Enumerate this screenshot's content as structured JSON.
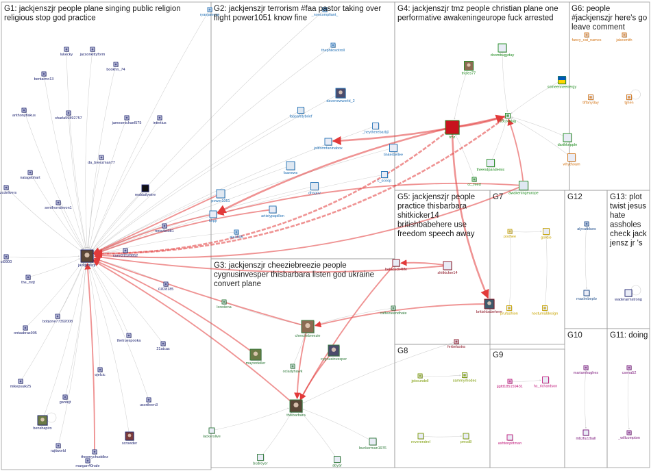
{
  "groups": [
    {
      "id": "G1",
      "label": "G1: jackjenszjr people plane singing public religion religious stop god practice",
      "color": "#1d2370"
    },
    {
      "id": "G2",
      "label": "G2: jackjenszjr terrorism #faa pastor taking over flight power1051 know fine",
      "color": "#1f6fb5"
    },
    {
      "id": "G3",
      "label": "G3: jackjenszjr cheeziebreezie people cygnusinvesper thisbarbara listen god ukraine convert plane",
      "color": "#2f7a3a"
    },
    {
      "id": "G4",
      "label": "G4: jackjenszjr tmz people christian plane one performative awakeningeurope fuck arrested",
      "color": "#1c8a1c"
    },
    {
      "id": "G5",
      "label": "G5: jackjenszjr people practice thisbarbara shitkicker14 britishbabehere use freedom speech away",
      "color": "#8a1020"
    },
    {
      "id": "G6",
      "label": "G6: people #jackjenszjr here's go leave comment",
      "color": "#d4781c"
    },
    {
      "id": "G7",
      "label": "G7",
      "color": "#c8a400"
    },
    {
      "id": "G8",
      "label": "G8",
      "color": "#7a9a00"
    },
    {
      "id": "G9",
      "label": "G9",
      "color": "#c0187a"
    },
    {
      "id": "G10",
      "label": "G10",
      "color": "#7a157a"
    },
    {
      "id": "G11",
      "label": "G11: doing",
      "color": "#7a157a"
    },
    {
      "id": "G12",
      "label": "G12",
      "color": "#1a4a8a"
    },
    {
      "id": "G13",
      "label": "G13: plot twist jesus hate assholes check jack jensz jr 's",
      "color": "#1d2370"
    }
  ],
  "nodes": [
    {
      "id": "jackjenszjr",
      "label": "jackjenszjr",
      "group": "G1",
      "icon": "avatar-photo"
    },
    {
      "id": "lukecky",
      "label": "lukecky",
      "group": "G1",
      "icon": "avatar"
    },
    {
      "id": "jacsonkittyform",
      "label": "jacsonkittyform",
      "group": "G1",
      "icon": "avatar"
    },
    {
      "id": "bentaimo13",
      "label": "bentaimo13",
      "group": "G1",
      "icon": "avatar"
    },
    {
      "id": "bookhn_74",
      "label": "bookhn_74",
      "group": "G1",
      "icon": "avatar"
    },
    {
      "id": "anthonyflakus",
      "label": "anthonyflakus",
      "group": "G1",
      "icon": "avatar"
    },
    {
      "id": "sharla59892757",
      "label": "sharla59892757",
      "group": "G1",
      "icon": "avatar"
    },
    {
      "id": "jamesmichael575",
      "label": "jamesmichael575",
      "group": "G1",
      "icon": "avatar"
    },
    {
      "id": "intertius",
      "label": "intertius",
      "group": "G1",
      "icon": "avatar"
    },
    {
      "id": "da_breezman77",
      "label": "da_breezman77",
      "group": "G1",
      "icon": "avatar"
    },
    {
      "id": "natagebhart",
      "label": "natagebhart",
      "group": "G1",
      "icon": "avatar"
    },
    {
      "id": "nazcdelivers",
      "label": "nazcdelivers",
      "group": "G1",
      "icon": "avatar"
    },
    {
      "id": "sentfromdevon1",
      "label": "sentfromdevon1",
      "group": "G1",
      "icon": "avatar"
    },
    {
      "id": "realdailywire",
      "label": "realdailywire",
      "group": "G1",
      "icon": "avatar-logo"
    },
    {
      "id": "nora4el381",
      "label": "nora4el381",
      "group": "G1",
      "icon": "avatar"
    },
    {
      "id": "carol31528852",
      "label": "carol31528852",
      "group": "G1",
      "icon": "avatar"
    },
    {
      "id": "ct9900",
      "label": "ct9900",
      "group": "G1",
      "icon": "avatar"
    },
    {
      "id": "the_mrjt",
      "label": "the_mrjt",
      "group": "G1",
      "icon": "avatar"
    },
    {
      "id": "i1828185",
      "label": "i1828185",
      "group": "G1",
      "icon": "avatar"
    },
    {
      "id": "bobjone77392008",
      "label": "bobjone77392008",
      "group": "G1",
      "icon": "avatar"
    },
    {
      "id": "ontaabras905",
      "label": "ontaabras905",
      "group": "G1",
      "icon": "avatar"
    },
    {
      "id": "thetruespooka",
      "label": "thetruespooka",
      "group": "G1",
      "icon": "avatar"
    },
    {
      "id": "21atcas",
      "label": "21atcas",
      "group": "G1",
      "icon": "avatar"
    },
    {
      "id": "mikepsuik25",
      "label": "mikepsuik25",
      "group": "G1",
      "icon": "avatar"
    },
    {
      "id": "ojelcic",
      "label": "ojelcic",
      "group": "G1",
      "icon": "avatar"
    },
    {
      "id": "gantejt",
      "label": "gantejt",
      "group": "G1",
      "icon": "avatar"
    },
    {
      "id": "usorthern3",
      "label": "usorthern3",
      "group": "G1",
      "icon": "avatar"
    },
    {
      "id": "benshapiro",
      "label": "benshapiro",
      "group": "G1",
      "icon": "avatar-photo"
    },
    {
      "id": "scrowder",
      "label": "scrowder",
      "group": "G1",
      "icon": "avatar-photo"
    },
    {
      "id": "rajitworld",
      "label": "rajitworld",
      "group": "G1",
      "icon": "avatar"
    },
    {
      "id": "margan40nale",
      "label": "margan40nale",
      "group": "G1",
      "icon": "avatar"
    },
    {
      "id": "thesmychuddlez",
      "label": "thesmychuddlez",
      "group": "G1",
      "icon": "avatar"
    },
    {
      "id": "ryanjamesp",
      "label": "ryanjamesp",
      "group": "G2",
      "icon": "avatar"
    },
    {
      "id": "noncompliant",
      "label": "_noncompliant_",
      "group": "G2",
      "icon": "avatar"
    },
    {
      "id": "thephilosotroll",
      "label": "thephilosotroll",
      "group": "G2",
      "icon": "avatar"
    },
    {
      "id": "davenewworld_2",
      "label": "davenewworld_2",
      "group": "G2",
      "icon": "avatar-photo"
    },
    {
      "id": "faasafetybrief",
      "label": "faasafetybrief",
      "group": "G2",
      "icon": "avatar-logo"
    },
    {
      "id": "heytherebarbji",
      "label": "_heytherebarbji",
      "group": "G2",
      "icon": "avatar"
    },
    {
      "id": "joliformfaninabox",
      "label": "joliformfaninabox",
      "group": "G2",
      "icon": "avatar"
    },
    {
      "id": "tinkerbellee",
      "label": "tinkerbellee",
      "group": "G2",
      "icon": "avatar"
    },
    {
      "id": "faanews",
      "label": "faanews",
      "group": "G2",
      "icon": "avatar-logo"
    },
    {
      "id": "c_scoop",
      "label": "c_scoop",
      "group": "G2",
      "icon": "avatar"
    },
    {
      "id": "dhsgov",
      "label": "dhsgov",
      "group": "G2",
      "icon": "avatar-logo"
    },
    {
      "id": "power1051",
      "label": "power1051",
      "group": "G2",
      "icon": "avatar-logo"
    },
    {
      "id": "klrpjr",
      "label": "klrpjr",
      "group": "G2",
      "icon": "avatar"
    },
    {
      "id": "artistypapillon",
      "label": "artistypapillon",
      "group": "G2",
      "icon": "avatar"
    },
    {
      "id": "aja3595",
      "label": "aja3595",
      "group": "G2",
      "icon": "avatar"
    },
    {
      "id": "tmz",
      "label": "tmz",
      "group": "G4",
      "icon": "avatar-logo"
    },
    {
      "id": "doombugyday",
      "label": "doombugyday",
      "group": "G4",
      "icon": "avatar"
    },
    {
      "id": "tricles77",
      "label": "tricles77",
      "group": "G4",
      "icon": "avatar-photo"
    },
    {
      "id": "someenneenergy",
      "label": "someenneenergy",
      "group": "G4",
      "icon": "avatar-flag"
    },
    {
      "id": "23courlug",
      "label": "23courlug",
      "group": "G4",
      "icon": "avatar"
    },
    {
      "id": "darthkripple",
      "label": "darthkripple",
      "group": "G4",
      "icon": "avatar"
    },
    {
      "id": "theendpandemic",
      "label": "theendpandemic",
      "group": "G4",
      "icon": "avatar"
    },
    {
      "id": "awakeningeurope",
      "label": "awakeningeurope",
      "group": "G4",
      "icon": "avatar-logo"
    },
    {
      "id": "cc_feed",
      "label": "cc_feed",
      "group": "G4",
      "icon": "avatar"
    },
    {
      "id": "whythoam",
      "label": "whythoam",
      "group": "G6",
      "icon": "avatar"
    },
    {
      "id": "fancy_cat_names",
      "label": "fancy_cat_names",
      "group": "G6",
      "icon": "avatar"
    },
    {
      "id": "jakesmith",
      "label": "jakesmith",
      "group": "G6",
      "icon": "avatar"
    },
    {
      "id": "tiffanyday",
      "label": "tiffanyday",
      "group": "G6",
      "icon": "avatar"
    },
    {
      "id": "tjjhen",
      "label": "tjjhen",
      "group": "G6",
      "icon": "avatar"
    },
    {
      "id": "cheeziebreezie",
      "label": "cheeziebreezie",
      "group": "G3",
      "icon": "avatar-photo"
    },
    {
      "id": "loredena",
      "label": "loredena",
      "group": "G3",
      "icon": "avatar"
    },
    {
      "id": "mayordeller",
      "label": "mayordeller",
      "group": "G3",
      "icon": "avatar-photo"
    },
    {
      "id": "ociadyhawk",
      "label": "ociadyhawk",
      "group": "G3",
      "icon": "avatar"
    },
    {
      "id": "cygnusinvesper",
      "label": "cygnusinvesper",
      "group": "G3",
      "icon": "avatar-photo"
    },
    {
      "id": "thisbarbara",
      "label": "thisbarbara",
      "group": "G3",
      "icon": "avatar-photo"
    },
    {
      "id": "caffeineandhate",
      "label": "caffeineandhate",
      "group": "G3",
      "icon": "avatar"
    },
    {
      "id": "lackerslive",
      "label": "lackerslive",
      "group": "G3",
      "icon": "avatar"
    },
    {
      "id": "bunkerman1976",
      "label": "bunkerman1976",
      "group": "G3",
      "icon": "avatar"
    },
    {
      "id": "bcdreyer",
      "label": "bcdreyer",
      "group": "G3",
      "icon": "avatar"
    },
    {
      "id": "abyar",
      "label": "abyar",
      "group": "G3",
      "icon": "avatar"
    },
    {
      "id": "betacuck4life",
      "label": "betacuck4life",
      "group": "G5",
      "icon": "avatar"
    },
    {
      "id": "shitkicker14",
      "label": "shitkicker14",
      "group": "G5",
      "icon": "avatar"
    },
    {
      "id": "britishbabehere",
      "label": "britishbabehere",
      "group": "G5",
      "icon": "avatar-photo"
    },
    {
      "id": "ferbelastra",
      "label": "ferbelastra",
      "group": "G5",
      "icon": "avatar"
    },
    {
      "id": "jpboundell",
      "label": "jpboundell",
      "group": "G8",
      "icon": "avatar"
    },
    {
      "id": "sammyrhodes",
      "label": "sammyrhodes",
      "group": "G8",
      "icon": "avatar"
    },
    {
      "id": "reverendrel",
      "label": "reverendrel",
      "group": "G8",
      "icon": "avatar"
    },
    {
      "id": "pmcd8",
      "label": "pmcd8",
      "group": "G8",
      "icon": "avatar"
    },
    {
      "id": "poshee",
      "label": "poshee",
      "group": "G7",
      "icon": "avatar"
    },
    {
      "id": "gordie",
      "label": "gordie",
      "group": "G7",
      "icon": "avatar"
    },
    {
      "id": "prufashion",
      "label": "prufashion",
      "group": "G7",
      "icon": "avatar"
    },
    {
      "id": "noctumaldesign",
      "label": "noctumaldesign",
      "group": "G7",
      "icon": "avatar"
    },
    {
      "id": "jjgfd185159431",
      "label": "jjgfd185159431",
      "group": "G9",
      "icon": "avatar"
    },
    {
      "id": "hc_richardson",
      "label": "hc_richardson",
      "group": "G9",
      "icon": "avatar"
    },
    {
      "id": "ashtonpittman",
      "label": "ashtonpittman",
      "group": "G9",
      "icon": "avatar"
    },
    {
      "id": "mariamhughes",
      "label": "mariamhughes",
      "group": "G10",
      "icon": "avatar"
    },
    {
      "id": "mbzfuzzball",
      "label": "mbzfuzzball",
      "group": "G10",
      "icon": "avatar"
    },
    {
      "id": "csena52",
      "label": "csena52",
      "group": "G11",
      "icon": "avatar"
    },
    {
      "id": "_willcompton",
      "label": "_willcompton",
      "group": "G11",
      "icon": "avatar"
    },
    {
      "id": "alycatblues",
      "label": "alycatblues",
      "group": "G12",
      "icon": "avatar"
    },
    {
      "id": "maxlmbeplo",
      "label": "maxlmbeplo",
      "group": "G12",
      "icon": "avatar"
    },
    {
      "id": "waderarmstrong",
      "label": "waderarmstrong",
      "group": "G13",
      "icon": "avatar"
    }
  ],
  "edges": [
    [
      "tmz",
      "jackjenszjr",
      "strong"
    ],
    [
      "23courlug",
      "jackjenszjr",
      "strong"
    ],
    [
      "awakeningeurope",
      "jackjenszjr",
      "strong"
    ],
    [
      "shitkicker14",
      "jackjenszjr",
      "strong"
    ],
    [
      "thisbarbara",
      "jackjenszjr",
      "strong"
    ],
    [
      "cheeziebreezie",
      "jackjenszjr",
      "strong"
    ],
    [
      "mayordeller",
      "jackjenszjr",
      "strong"
    ],
    [
      "thesmychuddlez",
      "jackjenszjr",
      "strong"
    ],
    [
      "artistypapillon",
      "jackjenszjr",
      "strong"
    ],
    [
      "klrpjr",
      "jackjenszjr",
      "strong"
    ],
    [
      "power1051",
      "jackjenszjr",
      "strong"
    ],
    [
      "betacuck4life",
      "thisbarbara",
      "strong"
    ],
    [
      "shitkicker14",
      "betacuck4life",
      "strong"
    ],
    [
      "britishbabehere",
      "cheeziebreezie",
      "strong"
    ],
    [
      "cheeziebreezie",
      "thisbarbara",
      "strong"
    ],
    [
      "cygnusinvesper",
      "thisbarbara",
      "strong"
    ],
    [
      "23courlug",
      "joliformfaninabox",
      "strong"
    ],
    [
      "tmz",
      "23courlug",
      "strong"
    ],
    [
      "awakeningeurope",
      "23courlug",
      "strong"
    ],
    [
      "tmz",
      "klrpjr",
      "strong"
    ],
    [
      "awakeningeurope",
      "klrpjr",
      "strong"
    ],
    [
      "tmz",
      "britishbabehere",
      "strong"
    ],
    [
      "lukecky",
      "jackjenszjr",
      "thin"
    ],
    [
      "jacsonkittyform",
      "jackjenszjr",
      "thin"
    ],
    [
      "bentaimo13",
      "jackjenszjr",
      "thin"
    ],
    [
      "bookhn_74",
      "jackjenszjr",
      "thin"
    ],
    [
      "anthonyflakus",
      "jackjenszjr",
      "thin"
    ],
    [
      "sharla59892757",
      "jackjenszjr",
      "thin"
    ],
    [
      "jamesmichael575",
      "jackjenszjr",
      "thin"
    ],
    [
      "intertius",
      "jackjenszjr",
      "thin"
    ],
    [
      "da_breezman77",
      "jackjenszjr",
      "thin"
    ],
    [
      "natagebhart",
      "jackjenszjr",
      "thin"
    ],
    [
      "nazcdelivers",
      "jackjenszjr",
      "thin"
    ],
    [
      "sentfromdevon1",
      "jackjenszjr",
      "thin"
    ],
    [
      "realdailywire",
      "jackjenszjr",
      "thin"
    ],
    [
      "nora4el381",
      "jackjenszjr",
      "thin"
    ],
    [
      "carol31528852",
      "jackjenszjr",
      "thin"
    ],
    [
      "ct9900",
      "jackjenszjr",
      "thin"
    ],
    [
      "the_mrjt",
      "jackjenszjr",
      "thin"
    ],
    [
      "i1828185",
      "jackjenszjr",
      "thin"
    ],
    [
      "bobjone77392008",
      "jackjenszjr",
      "thin"
    ],
    [
      "ontaabras905",
      "jackjenszjr",
      "thin"
    ],
    [
      "thetruespooka",
      "jackjenszjr",
      "thin"
    ],
    [
      "21atcas",
      "jackjenszjr",
      "thin"
    ],
    [
      "mikepsuik25",
      "jackjenszjr",
      "thin"
    ],
    [
      "ojelcic",
      "jackjenszjr",
      "thin"
    ],
    [
      "gantejt",
      "jackjenszjr",
      "thin"
    ],
    [
      "usorthern3",
      "jackjenszjr",
      "thin"
    ],
    [
      "benshapiro",
      "jackjenszjr",
      "thin"
    ],
    [
      "scrowder",
      "jackjenszjr",
      "thin"
    ],
    [
      "rajitworld",
      "jackjenszjr",
      "thin"
    ],
    [
      "ryanjamesp",
      "jackjenszjr",
      "thin"
    ],
    [
      "faanews",
      "jackjenszjr",
      "thin"
    ],
    [
      "dhsgov",
      "jackjenszjr",
      "thin"
    ],
    [
      "aja3595",
      "jackjenszjr",
      "thin"
    ],
    [
      "faasafetybrief",
      "jackjenszjr",
      "thin"
    ],
    [
      "davenewworld_2",
      "jackjenszjr",
      "thin"
    ],
    [
      "thephilosotroll",
      "jackjenszjr",
      "thin"
    ],
    [
      "noncompliant",
      "jackjenszjr",
      "thin"
    ],
    [
      "heytherebarbji",
      "jackjenszjr",
      "thin"
    ],
    [
      "tinkerbellee",
      "jackjenszjr",
      "thin"
    ],
    [
      "c_scoop",
      "jackjenszjr",
      "thin"
    ],
    [
      "loredena",
      "cheeziebreezie",
      "thin"
    ],
    [
      "ociadyhawk",
      "cheeziebreezie",
      "thin"
    ],
    [
      "caffeineandhate",
      "cheeziebreezie",
      "thin"
    ],
    [
      "lackerslive",
      "thisbarbara",
      "thin"
    ],
    [
      "bunkerman1976",
      "thisbarbara",
      "thin"
    ],
    [
      "bcdreyer",
      "thisbarbara",
      "thin"
    ],
    [
      "abyar",
      "thisbarbara",
      "thin"
    ],
    [
      "ferbelastra",
      "thisbarbara",
      "thin"
    ],
    [
      "tricles77",
      "tmz",
      "thin"
    ],
    [
      "doombugyday",
      "23courlug",
      "thin"
    ],
    [
      "someenneenergy",
      "23courlug",
      "thin"
    ],
    [
      "darthkripple",
      "23courlug",
      "thin"
    ],
    [
      "theendpandemic",
      "23courlug",
      "thin"
    ],
    [
      "cc_feed",
      "tmz",
      "thin"
    ],
    [
      "whythoam",
      "23courlug",
      "thin"
    ],
    [
      "poshee",
      "gordie",
      "thin"
    ],
    [
      "prufashion",
      "poshee",
      "thin"
    ],
    [
      "noctumaldesign",
      "gordie",
      "thin"
    ],
    [
      "jpboundell",
      "sammyrhodes",
      "thin"
    ],
    [
      "reverendrel",
      "pmcd8",
      "thin"
    ],
    [
      "jjgfd185159431",
      "hc_richardson",
      "thin"
    ],
    [
      "mariamhughes",
      "mbzfuzzball",
      "thin"
    ],
    [
      "csena52",
      "_willcompton",
      "thin"
    ],
    [
      "alycatblues",
      "maxlmbeplo",
      "thin"
    ]
  ]
}
